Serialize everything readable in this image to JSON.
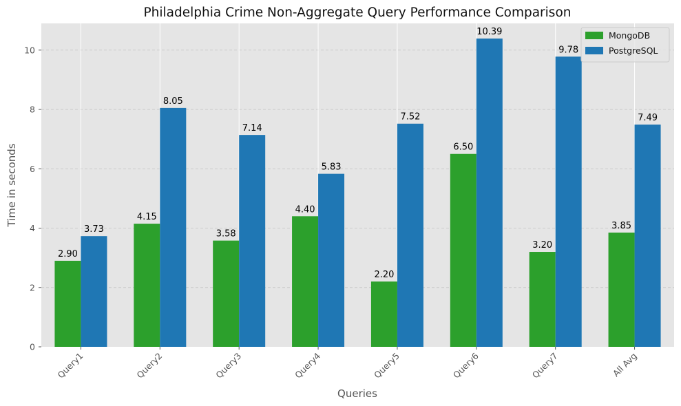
{
  "chart_data": {
    "type": "bar",
    "title": "Philadelphia Crime Non-Aggregate Query Performance Comparison",
    "xlabel": "Queries",
    "ylabel": "Time in seconds",
    "categories": [
      "Query1",
      "Query2",
      "Query3",
      "Query4",
      "Query5",
      "Query6",
      "Query7",
      "All Avg"
    ],
    "series": [
      {
        "name": "MongoDB",
        "color": "#2ca02c",
        "values": [
          2.9,
          4.15,
          3.58,
          4.4,
          2.2,
          6.5,
          3.2,
          3.85
        ],
        "labels": [
          "2.90",
          "4.15",
          "3.58",
          "4.40",
          "2.20",
          "6.50",
          "3.20",
          "3.85"
        ]
      },
      {
        "name": "PostgreSQL",
        "color": "#1f77b4",
        "values": [
          3.73,
          8.05,
          7.14,
          5.83,
          7.52,
          10.39,
          9.78,
          7.49
        ],
        "labels": [
          "3.73",
          "8.05",
          "7.14",
          "5.83",
          "7.52",
          "10.39",
          "9.78",
          "7.49"
        ]
      }
    ],
    "ylim": [
      0,
      10.9
    ],
    "yticks": [
      0,
      2,
      4,
      6,
      8,
      10
    ],
    "ytick_labels": [
      "0",
      "2",
      "4",
      "6",
      "8",
      "10"
    ],
    "grid": true,
    "background": "#e5e5e5",
    "legend_position": "top-right",
    "xtick_rotation_deg": 45
  }
}
